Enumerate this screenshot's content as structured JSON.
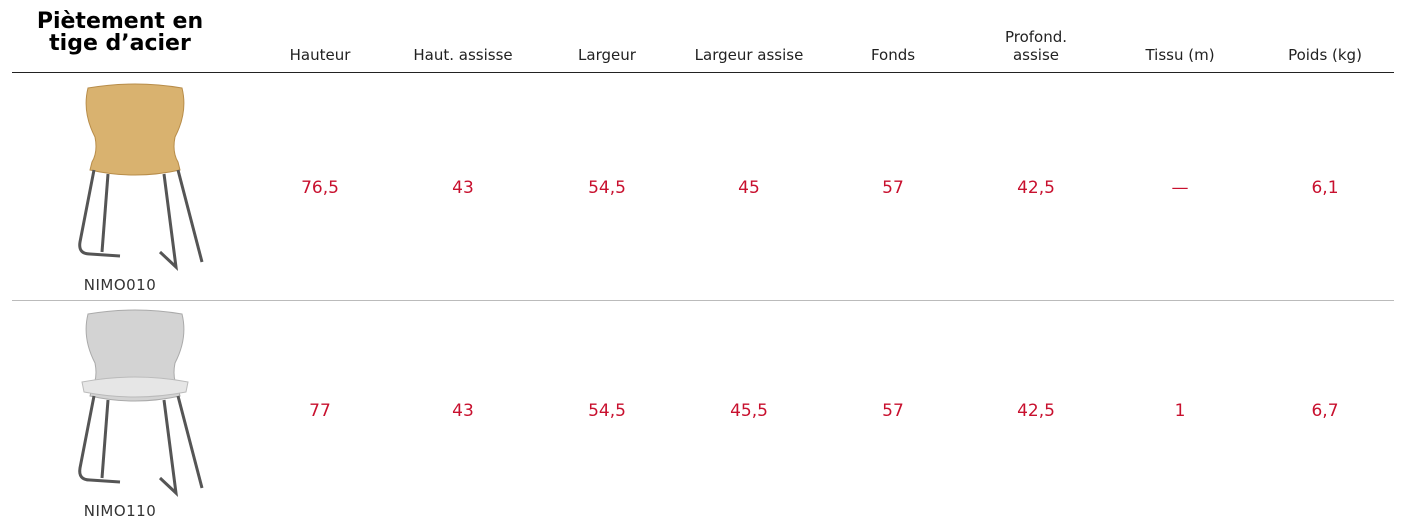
{
  "header": {
    "title": [
      "Piètement en",
      "tige d’acier"
    ],
    "columns": [
      "Hauteur",
      "Haut. assisse",
      "Largeur",
      "Largeur assise",
      "Fonds",
      "Profond. assise",
      "Tissu (m)",
      "Poids (kg)"
    ]
  },
  "rows": [
    {
      "code": "NIMO010",
      "values": [
        "76,5",
        "43",
        "54,5",
        "45",
        "57",
        "42,5",
        "—",
        "6,1"
      ]
    },
    {
      "code": "NIMO110",
      "values": [
        "77",
        "43",
        "54,5",
        "45,5",
        "57",
        "42,5",
        "1",
        "6,7"
      ]
    }
  ]
}
